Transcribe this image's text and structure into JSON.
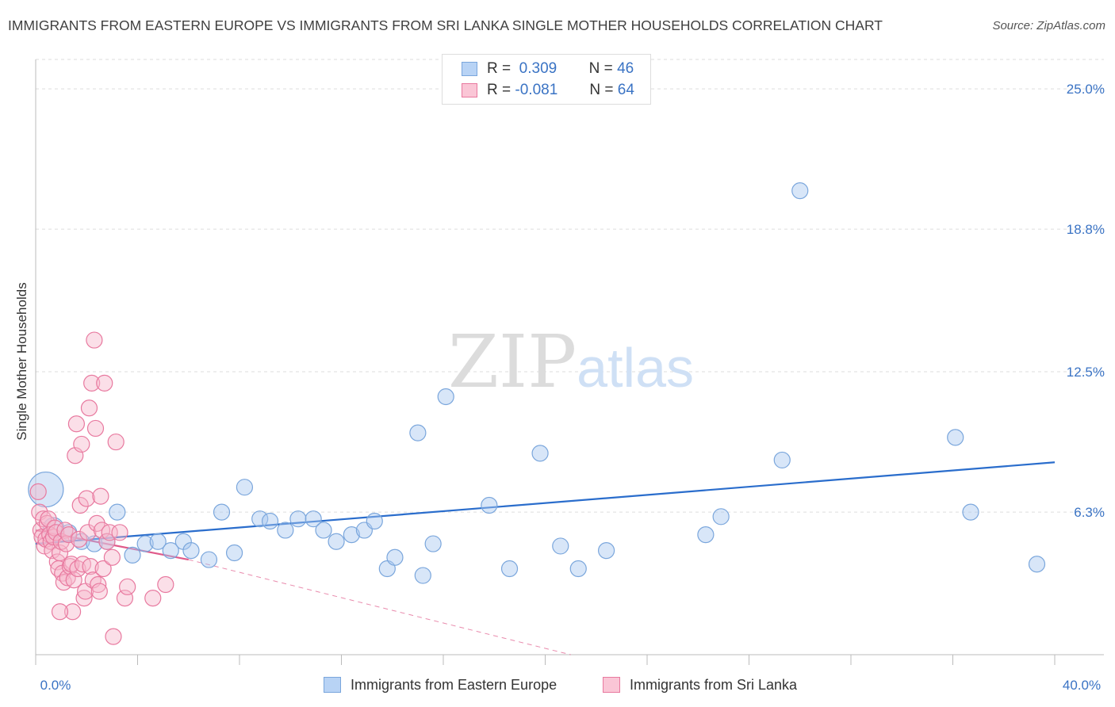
{
  "chart_data": {
    "type": "scatter",
    "title": "IMMIGRANTS FROM EASTERN EUROPE VS IMMIGRANTS FROM SRI LANKA SINGLE MOTHER HOUSEHOLDS CORRELATION CHART",
    "source": "Source: ZipAtlas.com",
    "ylabel": "Single Mother Households",
    "xlim": [
      0,
      40
    ],
    "ylim": [
      0,
      26.3
    ],
    "x_tick_labels": [
      "0.0%",
      "40.0%"
    ],
    "y_ticks": [
      6.3,
      12.5,
      18.8,
      25.0
    ],
    "y_tick_labels": [
      "6.3%",
      "12.5%",
      "18.8%",
      "25.0%"
    ],
    "grid": true,
    "watermark": "ZIPatlas",
    "legend": {
      "position": "top-center",
      "rows": [
        {
          "r_label": "R =",
          "r_value": "0.309",
          "n_label": "N =",
          "n_value": "46"
        },
        {
          "r_label": "R =",
          "r_value": "-0.081",
          "n_label": "N =",
          "n_value": "64"
        }
      ]
    },
    "series": [
      {
        "name": "Immigrants from Eastern Europe",
        "color": "#a8c8f0",
        "stroke": "#7aa6dc",
        "trend_color": "#2a6dcc",
        "trend": {
          "x0": 0,
          "y0": 4.9,
          "x1": 40,
          "y1": 8.5
        },
        "points": [
          [
            0.4,
            7.3,
            22
          ],
          [
            0.7,
            5.6,
            13
          ],
          [
            1.3,
            5.4,
            10
          ],
          [
            1.8,
            5.0,
            10
          ],
          [
            2.3,
            4.9,
            10
          ],
          [
            2.8,
            5.0,
            10
          ],
          [
            3.2,
            6.3,
            10
          ],
          [
            3.8,
            4.4,
            10
          ],
          [
            4.3,
            4.9,
            10
          ],
          [
            4.8,
            5.0,
            10
          ],
          [
            5.3,
            4.6,
            10
          ],
          [
            5.8,
            5.0,
            10
          ],
          [
            6.1,
            4.6,
            10
          ],
          [
            6.8,
            4.2,
            10
          ],
          [
            7.3,
            6.3,
            10
          ],
          [
            7.8,
            4.5,
            10
          ],
          [
            8.2,
            7.4,
            10
          ],
          [
            8.8,
            6.0,
            10
          ],
          [
            9.2,
            5.9,
            10
          ],
          [
            9.8,
            5.5,
            10
          ],
          [
            10.3,
            6.0,
            10
          ],
          [
            10.9,
            6.0,
            10
          ],
          [
            11.3,
            5.5,
            10
          ],
          [
            11.8,
            5.0,
            10
          ],
          [
            12.4,
            5.3,
            10
          ],
          [
            12.9,
            5.5,
            10
          ],
          [
            13.3,
            5.9,
            10
          ],
          [
            13.8,
            3.8,
            10
          ],
          [
            14.1,
            4.3,
            10
          ],
          [
            15.0,
            9.8,
            10
          ],
          [
            15.2,
            3.5,
            10
          ],
          [
            15.6,
            4.9,
            10
          ],
          [
            16.1,
            11.4,
            10
          ],
          [
            17.8,
            6.6,
            10
          ],
          [
            18.6,
            3.8,
            10
          ],
          [
            19.8,
            8.9,
            10
          ],
          [
            20.6,
            4.8,
            10
          ],
          [
            21.3,
            3.8,
            10
          ],
          [
            22.4,
            4.6,
            10
          ],
          [
            26.3,
            5.3,
            10
          ],
          [
            26.9,
            6.1,
            10
          ],
          [
            29.3,
            8.6,
            10
          ],
          [
            30.0,
            20.5,
            10
          ],
          [
            36.1,
            9.6,
            10
          ],
          [
            36.7,
            6.3,
            10
          ],
          [
            39.3,
            4.0,
            10
          ]
        ]
      },
      {
        "name": "Immigrants from Sri Lanka",
        "color": "#f7b8cc",
        "stroke": "#e8799f",
        "trend_color": "#e05a8a",
        "trend": {
          "x0": 0,
          "y0": 5.5,
          "x1": 6,
          "y1": 4.2,
          "dash_x1": 21,
          "dash_y1": 0
        },
        "points": [
          [
            0.1,
            7.2,
            10
          ],
          [
            0.15,
            6.3,
            10
          ],
          [
            0.2,
            5.5,
            10
          ],
          [
            0.25,
            5.2,
            10
          ],
          [
            0.3,
            6.0,
            10
          ],
          [
            0.35,
            4.8,
            10
          ],
          [
            0.4,
            5.1,
            10
          ],
          [
            0.45,
            5.8,
            10
          ],
          [
            0.5,
            6.0,
            10
          ],
          [
            0.55,
            5.3,
            10
          ],
          [
            0.6,
            5.0,
            10
          ],
          [
            0.65,
            4.6,
            10
          ],
          [
            0.7,
            5.2,
            10
          ],
          [
            0.75,
            5.6,
            10
          ],
          [
            0.8,
            5.4,
            10
          ],
          [
            0.85,
            4.1,
            10
          ],
          [
            0.9,
            3.8,
            10
          ],
          [
            0.95,
            4.5,
            10
          ],
          [
            1.0,
            5.0,
            10
          ],
          [
            1.05,
            3.6,
            10
          ],
          [
            1.1,
            3.2,
            10
          ],
          [
            1.15,
            5.5,
            10
          ],
          [
            1.2,
            4.9,
            10
          ],
          [
            1.25,
            3.4,
            10
          ],
          [
            1.3,
            5.3,
            10
          ],
          [
            1.35,
            3.9,
            10
          ],
          [
            1.4,
            4.0,
            10
          ],
          [
            1.45,
            1.9,
            10
          ],
          [
            1.5,
            3.3,
            10
          ],
          [
            1.55,
            8.8,
            10
          ],
          [
            1.6,
            10.2,
            10
          ],
          [
            1.65,
            3.8,
            10
          ],
          [
            1.7,
            5.1,
            10
          ],
          [
            1.75,
            6.6,
            10
          ],
          [
            1.8,
            9.3,
            10
          ],
          [
            1.85,
            4.0,
            10
          ],
          [
            1.9,
            2.5,
            10
          ],
          [
            1.95,
            2.8,
            10
          ],
          [
            2.0,
            6.9,
            10
          ],
          [
            2.05,
            5.4,
            10
          ],
          [
            2.1,
            10.9,
            10
          ],
          [
            2.15,
            3.9,
            10
          ],
          [
            2.2,
            12.0,
            10
          ],
          [
            2.25,
            3.3,
            10
          ],
          [
            2.3,
            13.9,
            10
          ],
          [
            2.35,
            10.0,
            10
          ],
          [
            2.4,
            5.8,
            10
          ],
          [
            2.45,
            3.1,
            10
          ],
          [
            2.5,
            2.8,
            10
          ],
          [
            2.55,
            7.0,
            10
          ],
          [
            2.6,
            5.5,
            10
          ],
          [
            2.65,
            3.8,
            10
          ],
          [
            2.7,
            12.0,
            10
          ],
          [
            2.8,
            5.0,
            10
          ],
          [
            2.9,
            5.4,
            10
          ],
          [
            3.0,
            4.3,
            10
          ],
          [
            3.05,
            0.8,
            10
          ],
          [
            3.15,
            9.4,
            10
          ],
          [
            3.3,
            5.4,
            10
          ],
          [
            3.5,
            2.5,
            10
          ],
          [
            3.6,
            3.0,
            10
          ],
          [
            4.6,
            2.5,
            10
          ],
          [
            5.1,
            3.1,
            10
          ],
          [
            0.95,
            1.9,
            10
          ]
        ]
      }
    ]
  },
  "bottom_legend": [
    {
      "label": "Immigrants from Eastern Europe"
    },
    {
      "label": "Immigrants from Sri Lanka"
    }
  ]
}
